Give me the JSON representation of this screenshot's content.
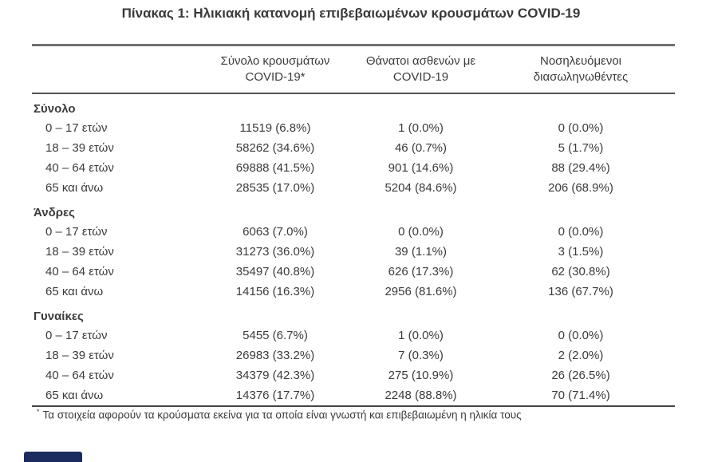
{
  "page": {
    "title": "Πίνακας 1: Ηλικιακή κατανομή επιβεβαιωμένων κρουσμάτων COVID-19",
    "footnote_marker": "*",
    "footnote_text": "Τα στοιχεία αφορούν τα κρούσματα εκείνα για τα οποία είναι γνωστή και επιβεβαιωμένη η ηλικία τους"
  },
  "colors": {
    "text": "#3b3b3b",
    "rule_top": "#707070",
    "rule_header_bottom": "#525252",
    "rule_bottom": "#454545",
    "partial_box": "#1c2b5f"
  },
  "table": {
    "header": {
      "cases": {
        "line1": "Σύνολο κρουσμάτων",
        "line2": "COVID-19*"
      },
      "deaths": {
        "line1": "Θάνατοι ασθενών με",
        "line2": "COVID-19"
      },
      "intubated": {
        "line1": "Νοσηλευόμενοι",
        "line2": "διασωληνωθέντες"
      }
    },
    "sections": [
      {
        "label": "Σύνολο",
        "rows": [
          {
            "age": "0 – 17 ετών",
            "cases": "11519 (6.8%)",
            "deaths": "1 (0.0%)",
            "intubated": "0 (0.0%)"
          },
          {
            "age": "18 – 39 ετών",
            "cases": "58262 (34.6%)",
            "deaths": "46 (0.7%)",
            "intubated": "5 (1.7%)"
          },
          {
            "age": "40 – 64 ετών",
            "cases": "69888 (41.5%)",
            "deaths": "901 (14.6%)",
            "intubated": "88 (29.4%)"
          },
          {
            "age": "65 και άνω",
            "cases": "28535 (17.0%)",
            "deaths": "5204 (84.6%)",
            "intubated": "206 (68.9%)"
          }
        ]
      },
      {
        "label": "Άνδρες",
        "rows": [
          {
            "age": "0 – 17 ετών",
            "cases": "6063 (7.0%)",
            "deaths": "0 (0.0%)",
            "intubated": "0 (0.0%)"
          },
          {
            "age": "18 – 39 ετών",
            "cases": "31273 (36.0%)",
            "deaths": "39 (1.1%)",
            "intubated": "3 (1.5%)"
          },
          {
            "age": "40 – 64 ετών",
            "cases": "35497 (40.8%)",
            "deaths": "626 (17.3%)",
            "intubated": "62 (30.8%)"
          },
          {
            "age": "65 και άνω",
            "cases": "14156 (16.3%)",
            "deaths": "2956 (81.6%)",
            "intubated": "136 (67.7%)"
          }
        ]
      },
      {
        "label": "Γυναίκες",
        "rows": [
          {
            "age": "0 – 17 ετών",
            "cases": "5455 (6.7%)",
            "deaths": "1 (0.0%)",
            "intubated": "0 (0.0%)"
          },
          {
            "age": "18 – 39 ετών",
            "cases": "26983 (33.2%)",
            "deaths": "7 (0.3%)",
            "intubated": "2 (2.0%)"
          },
          {
            "age": "40 – 64 ετών",
            "cases": "34379 (42.3%)",
            "deaths": "275 (10.9%)",
            "intubated": "26 (26.5%)"
          },
          {
            "age": "65 και άνω",
            "cases": "14376 (17.7%)",
            "deaths": "2248 (88.8%)",
            "intubated": "70 (71.4%)"
          }
        ]
      }
    ]
  }
}
